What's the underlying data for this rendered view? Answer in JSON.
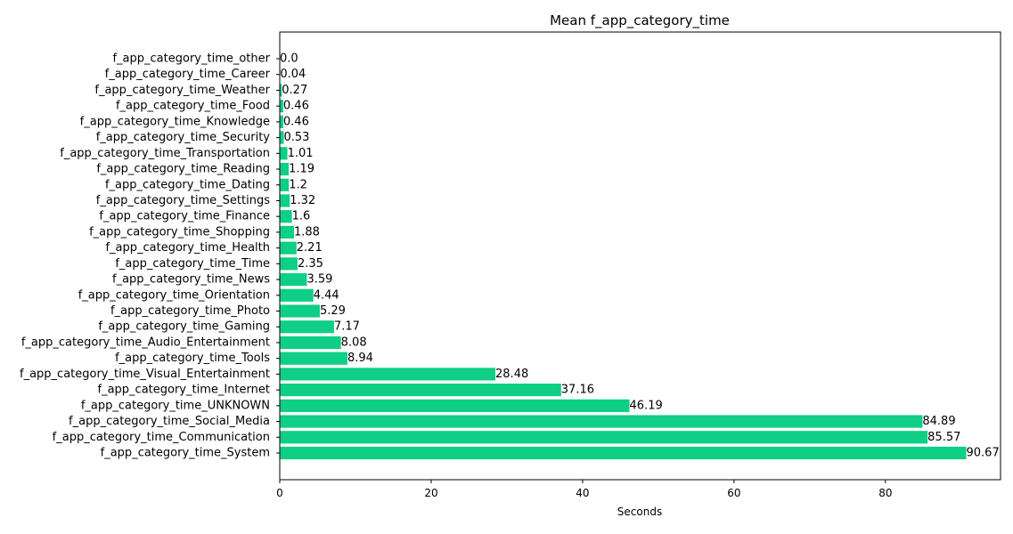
{
  "chart_data": {
    "type": "bar",
    "orientation": "horizontal",
    "title": "Mean f_app_category_time",
    "xlabel": "Seconds",
    "ylabel": "",
    "xlim": [
      0,
      95.2
    ],
    "xticks": [
      0,
      20,
      40,
      60,
      80
    ],
    "grid": false,
    "legend": "none",
    "bar_color": "#0fce85",
    "categories": [
      "f_app_category_time_other",
      "f_app_category_time_Career",
      "f_app_category_time_Weather",
      "f_app_category_time_Food",
      "f_app_category_time_Knowledge",
      "f_app_category_time_Security",
      "f_app_category_time_Transportation",
      "f_app_category_time_Reading",
      "f_app_category_time_Dating",
      "f_app_category_time_Settings",
      "f_app_category_time_Finance",
      "f_app_category_time_Shopping",
      "f_app_category_time_Health",
      "f_app_category_time_Time",
      "f_app_category_time_News",
      "f_app_category_time_Orientation",
      "f_app_category_time_Photo",
      "f_app_category_time_Gaming",
      "f_app_category_time_Audio_Entertainment",
      "f_app_category_time_Tools",
      "f_app_category_time_Visual_Entertainment",
      "f_app_category_time_Internet",
      "f_app_category_time_UNKNOWN",
      "f_app_category_time_Social_Media",
      "f_app_category_time_Communication",
      "f_app_category_time_System"
    ],
    "values": [
      0.0,
      0.04,
      0.27,
      0.46,
      0.46,
      0.53,
      1.01,
      1.19,
      1.2,
      1.32,
      1.6,
      1.88,
      2.21,
      2.35,
      3.59,
      4.44,
      5.29,
      7.17,
      8.08,
      8.94,
      28.48,
      37.16,
      46.19,
      84.89,
      85.57,
      90.67
    ],
    "value_labels": [
      "0.0",
      "0.04",
      "0.27",
      "0.46",
      "0.46",
      "0.53",
      "1.01",
      "1.19",
      "1.2",
      "1.32",
      "1.6",
      "1.88",
      "2.21",
      "2.35",
      "3.59",
      "4.44",
      "5.29",
      "7.17",
      "8.08",
      "8.94",
      "28.48",
      "37.16",
      "46.19",
      "84.89",
      "85.57",
      "90.67"
    ]
  }
}
